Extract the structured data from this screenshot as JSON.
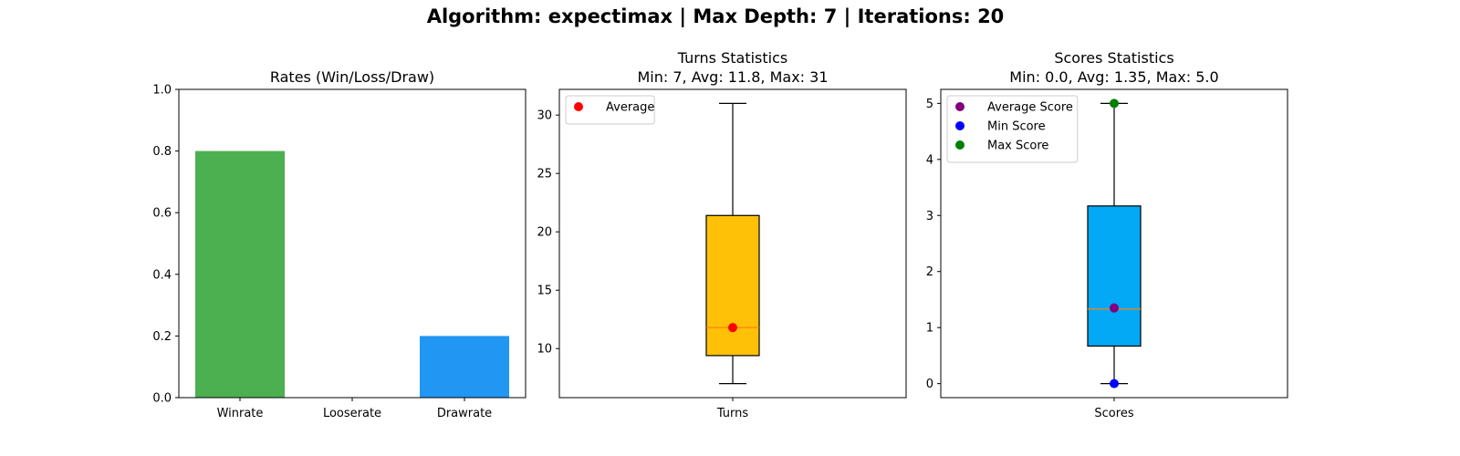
{
  "figure": {
    "suptitle": "Algorithm: expectimax | Max Depth: 7 | Iterations: 20"
  },
  "chart_data": [
    {
      "type": "bar",
      "title": "Rates (Win/Loss/Draw)",
      "categories": [
        "Winrate",
        "Looserate",
        "Drawrate"
      ],
      "values": [
        0.8,
        0.0,
        0.2
      ],
      "colors": [
        "#4caf50",
        "#f44336",
        "#2196f3"
      ],
      "ylim": [
        0,
        1.0
      ],
      "yticks": [
        "0.0",
        "0.2",
        "0.4",
        "0.6",
        "0.8",
        "1.0"
      ],
      "grid": false
    },
    {
      "type": "box",
      "title_line1": "Turns Statistics",
      "title_line2": "Min: 7, Avg: 11.8, Max: 31",
      "category": "Turns",
      "box": {
        "whisker_low": 7,
        "q1": 9.4,
        "median": 11.8,
        "q3": 21.4,
        "whisker_high": 31
      },
      "box_color": "#ffc107",
      "median_color": "#ff7f0e",
      "points": [
        {
          "name": "Average",
          "value": 11.8,
          "color": "#ff0000"
        }
      ],
      "legend": [
        "Average"
      ],
      "legend_position": "top-left",
      "ylim": [
        5.8,
        32.2
      ],
      "yticks": [
        10,
        15,
        20,
        25,
        30
      ],
      "grid": false
    },
    {
      "type": "box",
      "title_line1": "Scores Statistics",
      "title_line2": "Min: 0.0, Avg: 1.35, Max: 5.0",
      "category": "Scores",
      "box": {
        "whisker_low": 0.0,
        "q1": 0.67,
        "median": 1.33,
        "q3": 3.17,
        "whisker_high": 5.0
      },
      "box_color": "#03a9f4",
      "median_color": "#ff7f0e",
      "points": [
        {
          "name": "Average Score",
          "value": 1.35,
          "color": "#800080"
        },
        {
          "name": "Min Score",
          "value": 0.0,
          "color": "#0000ff"
        },
        {
          "name": "Max Score",
          "value": 5.0,
          "color": "#008000"
        }
      ],
      "legend": [
        "Average Score",
        "Min Score",
        "Max Score"
      ],
      "legend_position": "top-left",
      "ylim": [
        -0.25,
        5.25
      ],
      "yticks": [
        0,
        1,
        2,
        3,
        4,
        5
      ],
      "grid": false
    }
  ]
}
